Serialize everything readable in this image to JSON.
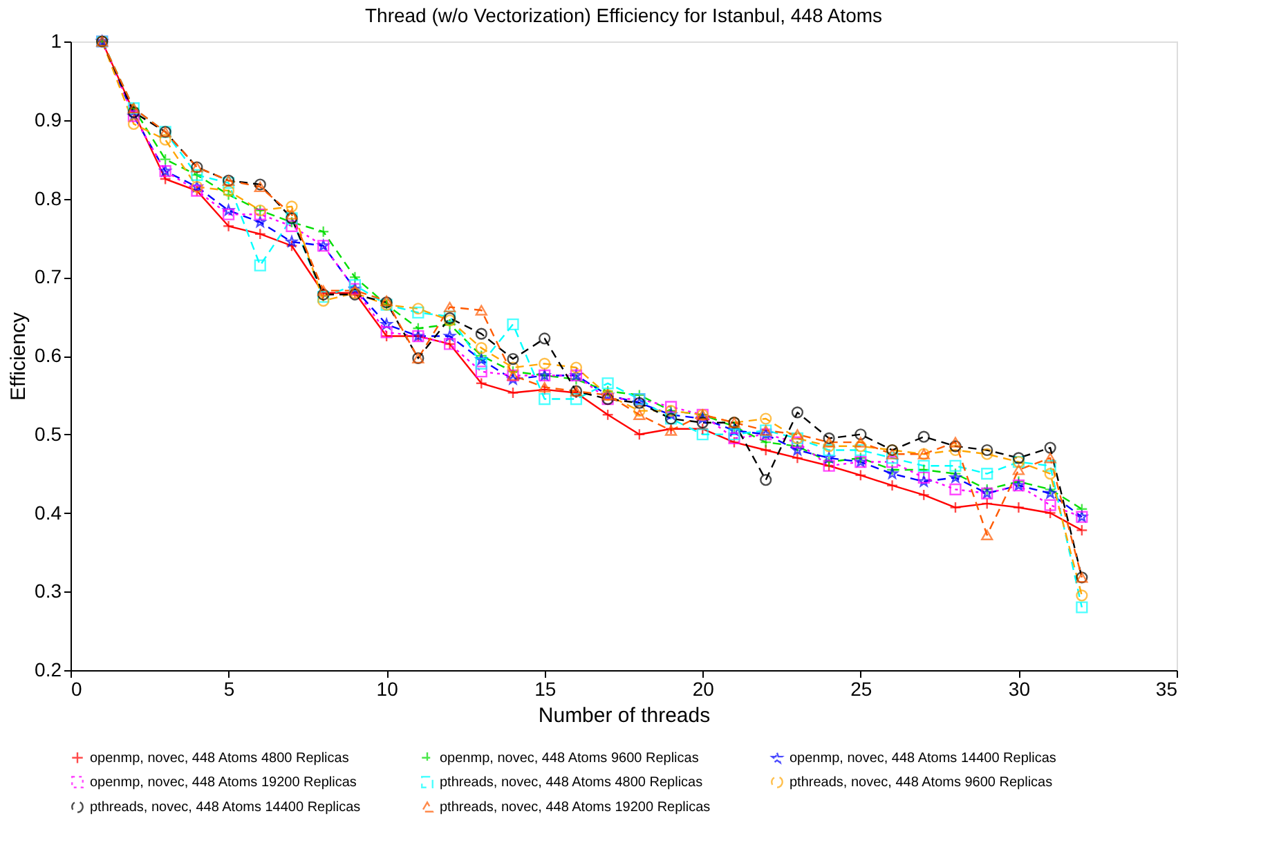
{
  "chart_data": {
    "type": "line",
    "title": "Thread (w/o Vectorization) Efficiency for Istanbul, 448 Atoms",
    "xlabel": "Number of threads",
    "ylabel": "Efficiency",
    "x": [
      1,
      2,
      3,
      4,
      5,
      6,
      7,
      8,
      9,
      10,
      11,
      12,
      13,
      14,
      15,
      16,
      17,
      18,
      19,
      20,
      21,
      22,
      23,
      24,
      25,
      26,
      27,
      28,
      29,
      30,
      31,
      32
    ],
    "xlim": [
      0,
      35
    ],
    "xticks": [
      0,
      5,
      10,
      15,
      20,
      25,
      30,
      35
    ],
    "ylim": [
      0.2,
      1
    ],
    "yticks": [
      0.2,
      0.3,
      0.4,
      0.5,
      0.6,
      0.7,
      0.8,
      0.9,
      1
    ],
    "grid": false,
    "legend": "bottom",
    "series": [
      {
        "name": "openmp, novec, 448 Atoms 4800 Replicas",
        "color": "#ff0000",
        "marker": "cross",
        "line_style": "solid",
        "values": [
          1.0,
          0.91,
          0.825,
          0.81,
          0.765,
          0.755,
          0.74,
          0.68,
          0.68,
          0.625,
          0.625,
          0.615,
          0.565,
          0.553,
          0.557,
          0.553,
          0.525,
          0.5,
          0.507,
          0.507,
          0.49,
          0.48,
          0.47,
          0.46,
          0.448,
          0.435,
          0.423,
          0.407,
          0.412,
          0.407,
          0.4,
          0.378
        ]
      },
      {
        "name": "openmp, novec, 448 Atoms 9600 Replicas",
        "color": "#00dd00",
        "marker": "cross",
        "line_style": "dashed",
        "values": [
          1.0,
          0.915,
          0.85,
          0.83,
          0.805,
          0.785,
          0.77,
          0.758,
          0.7,
          0.665,
          0.635,
          0.64,
          0.6,
          0.58,
          0.575,
          0.57,
          0.555,
          0.55,
          0.53,
          0.525,
          0.51,
          0.49,
          0.485,
          0.465,
          0.47,
          0.455,
          0.455,
          0.45,
          0.43,
          0.44,
          0.43,
          0.405
        ]
      },
      {
        "name": "openmp, novec, 448 Atoms 14400 Replicas",
        "color": "#0000ff",
        "marker": "star",
        "line_style": "dashed",
        "values": [
          1.0,
          0.905,
          0.835,
          0.815,
          0.785,
          0.77,
          0.745,
          0.74,
          0.685,
          0.64,
          0.625,
          0.625,
          0.595,
          0.57,
          0.575,
          0.575,
          0.55,
          0.54,
          0.525,
          0.52,
          0.505,
          0.5,
          0.48,
          0.47,
          0.465,
          0.45,
          0.44,
          0.445,
          0.425,
          0.435,
          0.425,
          0.395
        ]
      },
      {
        "name": "openmp, novec, 448 Atoms 19200 Replicas",
        "color": "#ff00ff",
        "marker": "square",
        "line_style": "dotted",
        "values": [
          1.0,
          0.905,
          0.835,
          0.81,
          0.78,
          0.78,
          0.765,
          0.74,
          0.685,
          0.63,
          0.625,
          0.615,
          0.58,
          0.575,
          0.575,
          0.575,
          0.545,
          0.545,
          0.535,
          0.525,
          0.495,
          0.5,
          0.49,
          0.46,
          0.465,
          0.465,
          0.445,
          0.43,
          0.425,
          0.435,
          0.41,
          0.395
        ]
      },
      {
        "name": "pthreads, novec, 448 Atoms 4800 Replicas",
        "color": "#00ffff",
        "marker": "square",
        "line_style": "dashed",
        "values": [
          1.0,
          0.915,
          0.885,
          0.83,
          0.82,
          0.715,
          0.775,
          0.675,
          0.69,
          0.665,
          0.655,
          0.65,
          0.59,
          0.64,
          0.545,
          0.545,
          0.565,
          0.545,
          0.52,
          0.5,
          0.5,
          0.505,
          0.495,
          0.48,
          0.48,
          0.47,
          0.46,
          0.46,
          0.45,
          0.465,
          0.46,
          0.28
        ]
      },
      {
        "name": "pthreads, novec, 448 Atoms 9600 Replicas",
        "color": "#ffa500",
        "marker": "circle",
        "line_style": "dashed",
        "values": [
          1.0,
          0.895,
          0.875,
          0.815,
          0.81,
          0.785,
          0.79,
          0.67,
          0.68,
          0.665,
          0.66,
          0.645,
          0.61,
          0.585,
          0.59,
          0.585,
          0.55,
          0.53,
          0.53,
          0.525,
          0.515,
          0.52,
          0.495,
          0.485,
          0.485,
          0.48,
          0.475,
          0.48,
          0.475,
          0.465,
          0.45,
          0.295
        ]
      },
      {
        "name": "pthreads, novec, 448 Atoms 14400 Replicas",
        "color": "#000000",
        "marker": "circle",
        "line_style": "dashed",
        "values": [
          1.0,
          0.91,
          0.885,
          0.84,
          0.823,
          0.818,
          0.775,
          0.678,
          0.678,
          0.668,
          0.597,
          0.648,
          0.628,
          0.596,
          0.622,
          0.555,
          0.545,
          0.54,
          0.52,
          0.515,
          0.515,
          0.442,
          0.528,
          0.495,
          0.5,
          0.48,
          0.497,
          0.485,
          0.48,
          0.47,
          0.483,
          0.318
        ]
      },
      {
        "name": "pthreads, novec, 448 Atoms 19200 Replicas",
        "color": "#ff5a00",
        "marker": "triangle",
        "line_style": "dashed",
        "values": [
          1.0,
          0.915,
          0.885,
          0.84,
          0.823,
          0.815,
          0.78,
          0.683,
          0.683,
          0.67,
          0.597,
          0.662,
          0.658,
          0.575,
          0.56,
          0.555,
          0.55,
          0.525,
          0.505,
          0.525,
          0.515,
          0.505,
          0.5,
          0.49,
          0.49,
          0.475,
          0.475,
          0.49,
          0.372,
          0.455,
          0.47,
          0.318
        ]
      }
    ]
  }
}
